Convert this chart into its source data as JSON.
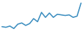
{
  "x": [
    0,
    1,
    2,
    3,
    4,
    5,
    6,
    7,
    8,
    9,
    10,
    11,
    12,
    13,
    14,
    15,
    16,
    17,
    18,
    19,
    20
  ],
  "y": [
    -350,
    -360,
    -340,
    -380,
    -310,
    -290,
    -330,
    -300,
    -220,
    -270,
    -120,
    -200,
    -130,
    -200,
    -150,
    -160,
    -170,
    -160,
    -200,
    -180,
    30
  ],
  "line_color": "#3e8fc0",
  "linewidth": 1.2,
  "background_color": "#ffffff",
  "ylim": [
    -420,
    80
  ]
}
